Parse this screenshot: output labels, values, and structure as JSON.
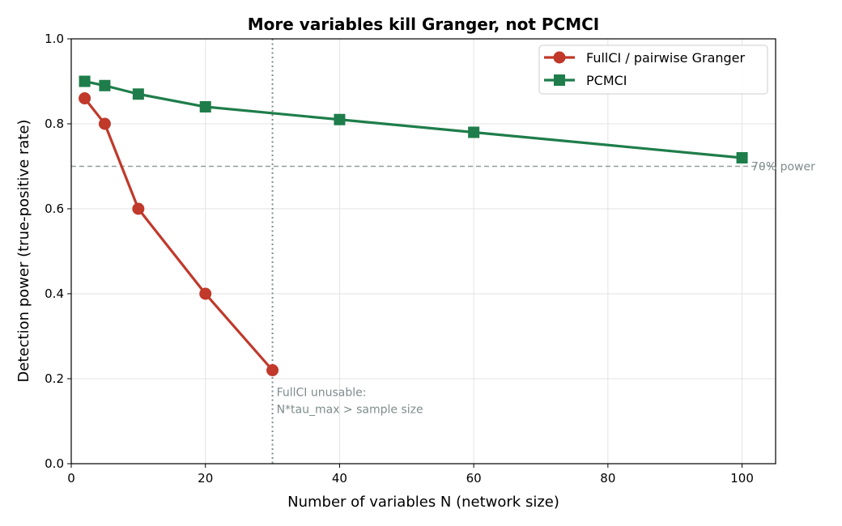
{
  "chart_data": {
    "type": "line",
    "title": "More variables kill Granger, not PCMCI",
    "xlabel": "Number of variables N (network size)",
    "ylabel": "Detection power (true-positive rate)",
    "xlim": [
      0,
      105
    ],
    "ylim": [
      0,
      1.0
    ],
    "xticks": [
      0,
      20,
      40,
      60,
      80,
      100
    ],
    "yticks": [
      0.0,
      0.2,
      0.4,
      0.6,
      0.8,
      1.0
    ],
    "xtick_labels": [
      "0",
      "20",
      "40",
      "60",
      "80",
      "100"
    ],
    "ytick_labels": [
      "0.0",
      "0.2",
      "0.4",
      "0.6",
      "0.8",
      "1.0"
    ],
    "grid": true,
    "legend_position": "top-right",
    "series": [
      {
        "name": "FullCI / pairwise Granger",
        "color": "#c0392b",
        "marker": "circle",
        "x": [
          2,
          5,
          10,
          20,
          30
        ],
        "y": [
          0.86,
          0.8,
          0.6,
          0.4,
          0.22
        ]
      },
      {
        "name": "PCMCI",
        "color": "#1e7d4a",
        "marker": "square",
        "x": [
          2,
          5,
          10,
          20,
          40,
          60,
          100
        ],
        "y": [
          0.9,
          0.89,
          0.87,
          0.84,
          0.81,
          0.78,
          0.72
        ]
      }
    ],
    "reference_lines": {
      "horizontal": {
        "y": 0.7,
        "label": "70% power",
        "color": "#7f8c8d"
      },
      "vertical": {
        "x": 30,
        "color": "#7f8c8d"
      }
    },
    "annotations": [
      {
        "text_lines": [
          "FullCI unusable:",
          "N*tau_max > sample size"
        ],
        "x": 30,
        "y": 0.22,
        "color": "#7f8c8d"
      }
    ]
  }
}
